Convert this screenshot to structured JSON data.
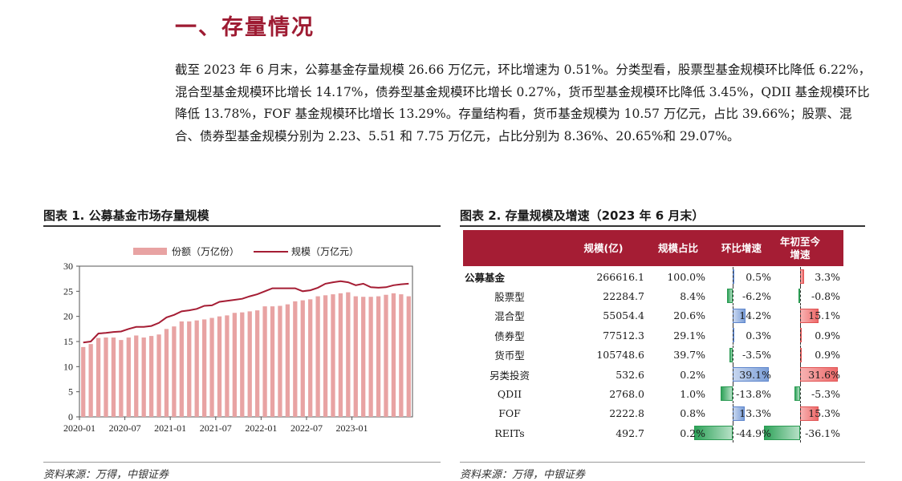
{
  "section_heading": "一、存量情况",
  "paragraph": "截至 2023 年 6 月末，公募基金存量规模 26.66 万亿元，环比增速为 0.51%。分类型看，股票型基金规模环比降低 6.22%，混合型基金规模环比增长 14.17%，债券型基金规模环比增长 0.27%，货币型基金规模环比降低 3.45%，QDII 基金规模环比降低 13.78%，FOF 基金规模环比增长 13.29%。存量结构看，货币基金规模为 10.57 万亿元，占比 39.66%；股票、混合、债券型基金规模分别为 2.23、5.51 和 7.75 万亿元，占比分别为 8.36%、20.65%和 29.07%。",
  "figure1": {
    "title": "图表 1. 公募基金市场存量规模",
    "source": "资料来源：万得，中银证券"
  },
  "figure2": {
    "title": "图表 2. 存量规模及增速（2023 年 6 月末）",
    "source": "资料来源：万得，中银证券",
    "columns": [
      "",
      "规模(亿)",
      "规模占比",
      "环比增速",
      "年初至今增速"
    ],
    "rows": [
      {
        "name": "公募基金",
        "scale": "266616.1",
        "share": "100.0%",
        "qoq": "0.5%",
        "ytd": "3.3%",
        "qoq_v": 0.5,
        "ytd_v": 3.3
      },
      {
        "name": "股票型",
        "scale": "22284.7",
        "share": "8.4%",
        "qoq": "-6.2%",
        "ytd": "-0.8%",
        "qoq_v": -6.2,
        "ytd_v": -0.8
      },
      {
        "name": "混合型",
        "scale": "55054.4",
        "share": "20.6%",
        "qoq": "14.2%",
        "ytd": "15.1%",
        "qoq_v": 14.2,
        "ytd_v": 15.1
      },
      {
        "name": "债券型",
        "scale": "77512.3",
        "share": "29.1%",
        "qoq": "0.3%",
        "ytd": "0.9%",
        "qoq_v": 0.3,
        "ytd_v": 0.9
      },
      {
        "name": "货币型",
        "scale": "105748.6",
        "share": "39.7%",
        "qoq": "-3.5%",
        "ytd": "0.9%",
        "qoq_v": -3.5,
        "ytd_v": 0.9
      },
      {
        "name": "另类投资",
        "scale": "532.6",
        "share": "0.2%",
        "qoq": "39.1%",
        "ytd": "31.6%",
        "qoq_v": 39.1,
        "ytd_v": 31.6
      },
      {
        "name": "QDII",
        "scale": "2768.0",
        "share": "1.0%",
        "qoq": "-13.8%",
        "ytd": "-5.3%",
        "qoq_v": -13.8,
        "ytd_v": -5.3
      },
      {
        "name": "FOF",
        "scale": "2222.8",
        "share": "0.8%",
        "qoq": "13.3%",
        "ytd": "15.3%",
        "qoq_v": 13.3,
        "ytd_v": 15.3
      },
      {
        "name": "REITs",
        "scale": "492.7",
        "share": "0.2%",
        "qoq": "-44.9%",
        "ytd": "-36.1%",
        "qoq_v": -44.9,
        "ytd_v": -36.1
      }
    ]
  },
  "chart_data": {
    "type": "bar",
    "title": "",
    "xlabel": "",
    "ylabel": "",
    "ylim": [
      0,
      30
    ],
    "yticks": [
      0,
      5,
      10,
      15,
      20,
      25,
      30
    ],
    "xtick_labels": [
      "2020-01",
      "2020-07",
      "2021-01",
      "2021-07",
      "2022-01",
      "2022-07",
      "2023-01"
    ],
    "legend_position": "top",
    "grid": false,
    "series": [
      {
        "name": "份额（万亿份）",
        "kind": "bar",
        "color": "#e8a3a3",
        "values": [
          13.9,
          14.5,
          15.7,
          15.8,
          15.8,
          15.3,
          15.8,
          16.2,
          15.8,
          16.1,
          16.4,
          17.5,
          18.0,
          19.0,
          19.0,
          19.2,
          19.4,
          19.7,
          20.0,
          20.2,
          20.7,
          20.8,
          21.0,
          21.2,
          22.0,
          22.0,
          22.1,
          22.4,
          23.0,
          23.2,
          23.4,
          24.0,
          24.2,
          24.4,
          24.6,
          24.8,
          24.0,
          23.9,
          23.9,
          24.0,
          24.3,
          24.6,
          24.4,
          24.0
        ]
      },
      {
        "name": "规模（万亿元）",
        "kind": "line",
        "color": "#a51d34",
        "values": [
          14.8,
          15.0,
          16.6,
          16.7,
          16.9,
          17.0,
          17.5,
          17.9,
          17.9,
          18.1,
          18.7,
          19.8,
          20.3,
          21.0,
          21.2,
          21.5,
          22.1,
          22.2,
          22.9,
          23.1,
          23.3,
          23.5,
          24.0,
          24.4,
          25.0,
          25.6,
          25.6,
          25.6,
          25.6,
          25.0,
          25.2,
          25.7,
          26.5,
          26.8,
          27.0,
          26.8,
          26.2,
          26.5,
          25.8,
          25.7,
          25.8,
          26.2,
          26.4,
          26.5
        ]
      }
    ]
  }
}
